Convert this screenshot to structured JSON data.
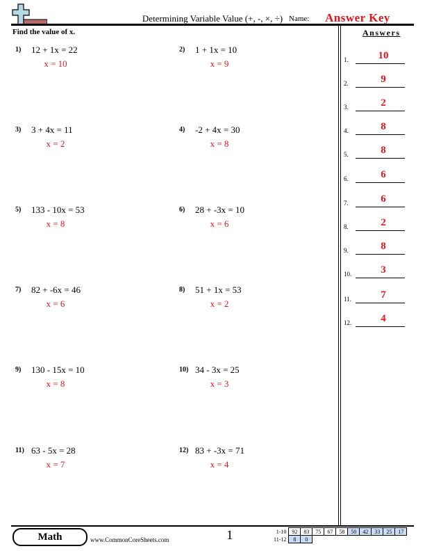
{
  "header": {
    "title": "Determining Variable Value (+, -, ×, ÷)",
    "name_label": "Name:",
    "name_value": "Answer Key",
    "logo": "plus-minus-logo"
  },
  "instructions": "Find the value of x.",
  "problems": [
    {
      "num": "1)",
      "eq": "12 + 1x = 22",
      "sol": "x = 10"
    },
    {
      "num": "2)",
      "eq": "1 + 1x = 10",
      "sol": "x = 9"
    },
    {
      "num": "3)",
      "eq": "3 + 4x = 11",
      "sol": "x = 2"
    },
    {
      "num": "4)",
      "eq": "-2 + 4x = 30",
      "sol": "x = 8"
    },
    {
      "num": "5)",
      "eq": "133 - 10x = 53",
      "sol": "x = 8"
    },
    {
      "num": "6)",
      "eq": "28 + -3x = 10",
      "sol": "x = 6"
    },
    {
      "num": "7)",
      "eq": "82 + -6x = 46",
      "sol": "x = 6"
    },
    {
      "num": "8)",
      "eq": "51 + 1x = 53",
      "sol": "x = 2"
    },
    {
      "num": "9)",
      "eq": "130 - 15x = 10",
      "sol": "x = 8"
    },
    {
      "num": "10)",
      "eq": "34 - 3x = 25",
      "sol": "x = 3"
    },
    {
      "num": "11)",
      "eq": "63 - 5x = 28",
      "sol": "x = 7"
    },
    {
      "num": "12)",
      "eq": "83 + -3x = 71",
      "sol": "x = 4"
    }
  ],
  "answers": {
    "heading": "Answers",
    "items": [
      {
        "num": "1.",
        "val": "10"
      },
      {
        "num": "2.",
        "val": "9"
      },
      {
        "num": "3.",
        "val": "2"
      },
      {
        "num": "4.",
        "val": "8"
      },
      {
        "num": "5.",
        "val": "8"
      },
      {
        "num": "6.",
        "val": "6"
      },
      {
        "num": "7.",
        "val": "6"
      },
      {
        "num": "8.",
        "val": "2"
      },
      {
        "num": "9.",
        "val": "8"
      },
      {
        "num": "10.",
        "val": "3"
      },
      {
        "num": "11.",
        "val": "7"
      },
      {
        "num": "12.",
        "val": "4"
      }
    ]
  },
  "footer": {
    "subject": "Math",
    "site": "www.CommonCoreSheets.com",
    "page": "1",
    "score_rows": [
      {
        "label": "1-10",
        "values": [
          "92",
          "83",
          "75",
          "67",
          "58",
          "50",
          "42",
          "33",
          "25",
          "17"
        ]
      },
      {
        "label": "11-12",
        "values": [
          "8",
          "0"
        ]
      }
    ]
  },
  "colors": {
    "answer": "#e8141b",
    "score_highlight": "#c9dcf7"
  }
}
